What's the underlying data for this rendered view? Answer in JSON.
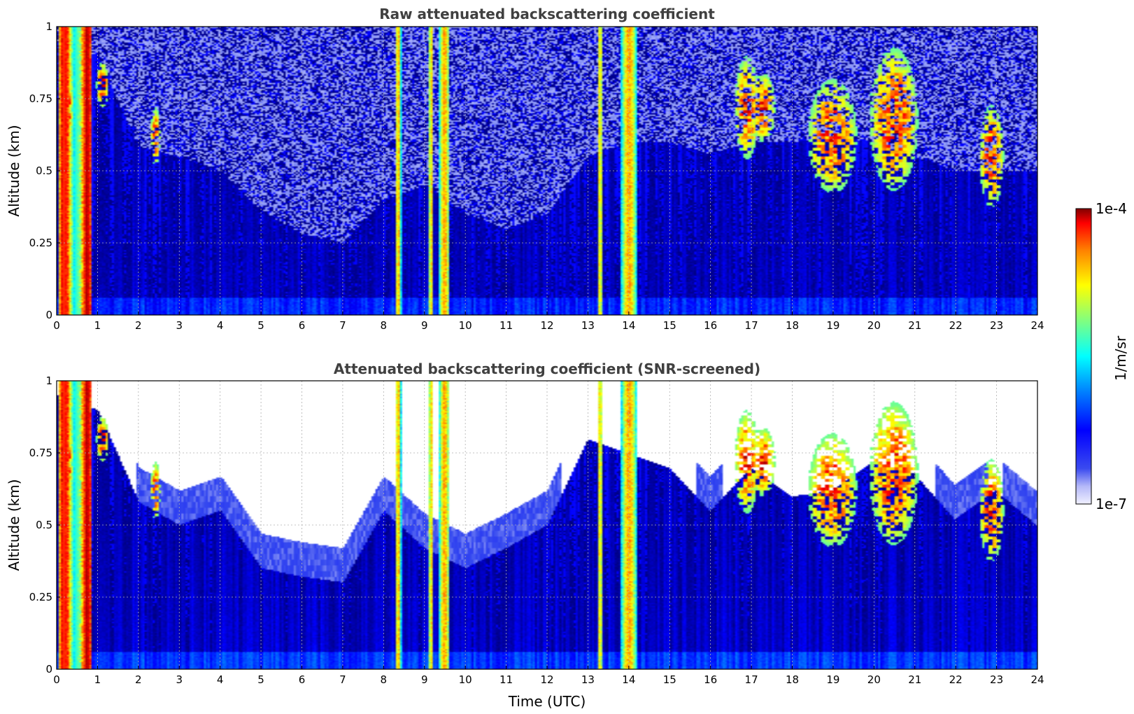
{
  "chart_data": [
    {
      "type": "heatmap",
      "title": "Raw attenuated backscattering coefficient",
      "xlabel": "",
      "ylabel": "Altitude (km)",
      "xlim": [
        0,
        24
      ],
      "ylim": [
        0,
        1
      ],
      "x_ticks": [
        "0",
        "1",
        "2",
        "3",
        "4",
        "5",
        "6",
        "7",
        "8",
        "9",
        "10",
        "11",
        "12",
        "13",
        "14",
        "15",
        "16",
        "17",
        "18",
        "19",
        "20",
        "21",
        "22",
        "23",
        "24"
      ],
      "y_ticks": [
        "0",
        "0.25",
        "0.5",
        "0.75",
        "1"
      ],
      "grid": true,
      "screened": false
    },
    {
      "type": "heatmap",
      "title": "Attenuated backscattering coefficient (SNR-screened)",
      "xlabel": "Time (UTC)",
      "ylabel": "Altitude (km)",
      "xlim": [
        0,
        24
      ],
      "ylim": [
        0,
        1
      ],
      "x_ticks": [
        "0",
        "1",
        "2",
        "3",
        "4",
        "5",
        "6",
        "7",
        "8",
        "9",
        "10",
        "11",
        "12",
        "13",
        "14",
        "15",
        "16",
        "17",
        "18",
        "19",
        "20",
        "21",
        "22",
        "23",
        "24"
      ],
      "y_ticks": [
        "0",
        "0.25",
        "0.5",
        "0.75",
        "1"
      ],
      "grid": true,
      "screened": true
    }
  ],
  "colorbar": {
    "label": "1/m/sr",
    "max_label": "1e-4",
    "min_label": "1e-7",
    "colormap": "jet",
    "scale": "log"
  },
  "field": {
    "noise_floor_km": [
      0.95,
      0.9,
      0.58,
      0.55,
      0.5,
      0.36,
      0.28,
      0.25,
      0.4,
      0.45,
      0.35,
      0.3,
      0.35,
      0.55,
      0.6,
      0.6,
      0.56,
      0.6,
      0.6,
      0.62,
      0.6,
      0.55,
      0.5,
      0.5,
      0.5
    ],
    "aerosol_top_km": [
      0.95,
      0.9,
      0.58,
      0.5,
      0.55,
      0.35,
      0.32,
      0.3,
      0.55,
      0.42,
      0.35,
      0.42,
      0.5,
      0.8,
      0.75,
      0.7,
      0.55,
      0.7,
      0.6,
      0.62,
      0.72,
      0.68,
      0.52,
      0.62,
      0.5
    ],
    "precip_bands_utc": [
      [
        0.05,
        0.85
      ],
      [
        8.28,
        8.42
      ],
      [
        9.1,
        9.2
      ],
      [
        9.35,
        9.62
      ],
      [
        13.25,
        13.35
      ],
      [
        13.82,
        14.2
      ]
    ],
    "cloud_patches": [
      [
        0.25,
        0.72,
        0.12,
        0.15
      ],
      [
        1.1,
        0.8,
        0.15,
        0.08
      ],
      [
        2.4,
        0.62,
        0.12,
        0.1
      ],
      [
        16.9,
        0.72,
        0.3,
        0.18
      ],
      [
        17.3,
        0.72,
        0.3,
        0.12
      ],
      [
        19.0,
        0.62,
        0.6,
        0.2
      ],
      [
        20.5,
        0.68,
        0.6,
        0.25
      ],
      [
        22.9,
        0.55,
        0.3,
        0.18
      ]
    ]
  }
}
